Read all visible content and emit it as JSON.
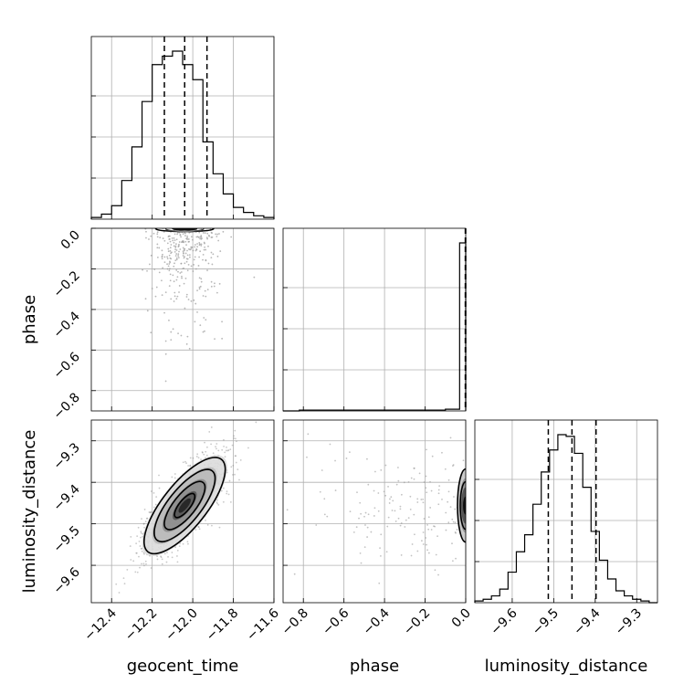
{
  "chart_data": {
    "type": "corner",
    "parameters": [
      "geocent_time",
      "phase",
      "luminosity_distance"
    ],
    "axes": {
      "geocent_time": {
        "label": "geocent_time",
        "range": [
          -12.5,
          -11.6
        ],
        "ticks": [
          -12.4,
          -12.2,
          -12.0,
          -11.8,
          -11.6
        ],
        "tick_labels": [
          "−12.4",
          "−12.2",
          "−12.0",
          "−11.8",
          "−11.6"
        ]
      },
      "phase": {
        "label": "phase",
        "range": [
          -0.9,
          0.0
        ],
        "ticks": [
          -0.8,
          -0.6,
          -0.4,
          -0.2,
          0.0
        ],
        "tick_labels": [
          "−0.8",
          "−0.6",
          "−0.4",
          "−0.2",
          "0.0"
        ]
      },
      "luminosity_distance": {
        "label": "luminosity_distance",
        "range": [
          -9.69,
          -9.25
        ],
        "ticks": [
          -9.6,
          -9.5,
          -9.4,
          -9.3
        ],
        "tick_labels": [
          "−9.6",
          "−9.5",
          "−9.4",
          "−9.3"
        ]
      }
    },
    "marginals": [
      {
        "parameter": "geocent_time",
        "bin_edges": [
          -12.5,
          -12.45,
          -12.4,
          -12.35,
          -12.3,
          -12.25,
          -12.2,
          -12.15,
          -12.1,
          -12.05,
          -12.0,
          -11.95,
          -11.9,
          -11.85,
          -11.8,
          -11.75,
          -11.7,
          -11.65,
          -11.6
        ],
        "counts": [
          0.01,
          0.03,
          0.08,
          0.23,
          0.43,
          0.7,
          0.92,
          0.97,
          1.0,
          0.92,
          0.83,
          0.46,
          0.27,
          0.15,
          0.07,
          0.04,
          0.02,
          0.01
        ],
        "quantiles": [
          -12.14,
          -12.04,
          -11.93
        ]
      },
      {
        "parameter": "phase",
        "bin_edges": [
          -0.9,
          -0.82,
          -0.74,
          -0.66,
          -0.58,
          -0.5,
          -0.42,
          -0.34,
          -0.26,
          -0.18,
          -0.1,
          -0.03,
          0.0
        ],
        "counts": [
          0,
          0.005,
          0.005,
          0.005,
          0.005,
          0.005,
          0.005,
          0.005,
          0.005,
          0.005,
          0.01,
          1.0
        ],
        "quantiles": [
          -0.002,
          -0.001,
          0.0
        ]
      },
      {
        "parameter": "luminosity_distance",
        "bin_edges": [
          -9.69,
          -9.67,
          -9.65,
          -9.63,
          -9.61,
          -9.59,
          -9.57,
          -9.55,
          -9.53,
          -9.51,
          -9.49,
          -9.47,
          -9.45,
          -9.43,
          -9.41,
          -9.39,
          -9.37,
          -9.35,
          -9.33,
          -9.31,
          -9.29,
          -9.27,
          -9.25
        ],
        "counts": [
          0.01,
          0.02,
          0.04,
          0.08,
          0.18,
          0.3,
          0.4,
          0.58,
          0.77,
          0.9,
          0.99,
          0.98,
          0.88,
          0.68,
          0.42,
          0.25,
          0.14,
          0.07,
          0.04,
          0.02,
          0.01,
          0.0
        ],
        "quantiles": [
          -9.513,
          -9.456,
          -9.398
        ]
      }
    ],
    "joints": [
      {
        "x": "geocent_time",
        "y": "phase",
        "center": [
          -12.04,
          -0.005
        ],
        "scatter_extent": {
          "x": [
            -12.3,
            -11.8
          ],
          "y": [
            -0.88,
            0.0
          ]
        }
      },
      {
        "x": "geocent_time",
        "y": "luminosity_distance",
        "center": [
          -12.04,
          -9.456
        ],
        "sigma": [
          0.1,
          0.058
        ],
        "correlation": 0.75,
        "contour_levels": [
          0.5,
          1.0,
          1.5,
          2.0
        ]
      },
      {
        "x": "phase",
        "y": "luminosity_distance",
        "center": [
          -0.005,
          -9.456
        ],
        "scatter_extent": {
          "x": [
            -0.9,
            0.0
          ],
          "y": [
            -9.6,
            -9.3
          ]
        }
      }
    ],
    "grid": true
  }
}
